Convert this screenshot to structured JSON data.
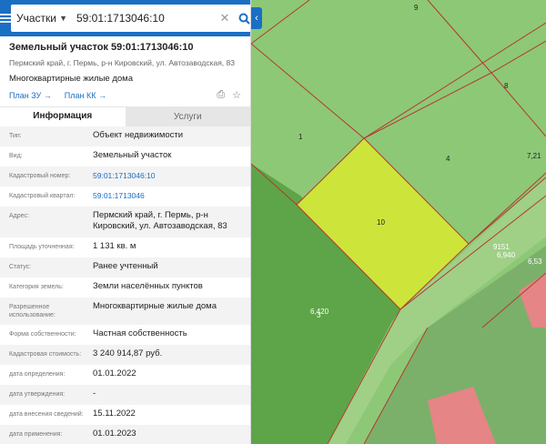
{
  "search": {
    "category": "Участки",
    "value": "59:01:1713046:10"
  },
  "parcel": {
    "title": "Земельный участок 59:01:1713046:10",
    "address_short": "Пермский край, г. Пермь, р-н Кировский, ул. Автозаводская, 83",
    "purpose": "Многоквартирные жилые дома",
    "link_plan_zu": "План ЗУ",
    "link_plan_kk": "План КК"
  },
  "tabs": {
    "info": "Информация",
    "services": "Услуги"
  },
  "rows": [
    {
      "key": "Тип:",
      "value": "Объект недвижимости"
    },
    {
      "key": "Вид:",
      "value": "Земельный участок"
    },
    {
      "key": "Кадастровый номер:",
      "value": "59:01:1713046:10"
    },
    {
      "key": "Кадастровый квартал:",
      "value": "59:01:1713046"
    },
    {
      "key": "Адрес:",
      "value": "Пермский край, г. Пермь, р-н Кировский, ул. Автозаводская, 83"
    },
    {
      "key": "Площадь уточненная:",
      "value": "1 131 кв. м"
    },
    {
      "key": "Статус:",
      "value": "Ранее учтенный"
    },
    {
      "key": "Категория земель:",
      "value": "Земли населённых пунктов"
    },
    {
      "key": "Разрешенное использование:",
      "value": "Многоквартирные жилые дома"
    },
    {
      "key": "Форма собственности:",
      "value": "Частная собственность"
    },
    {
      "key": "Кадастровая стоимость:",
      "value": "3 240 914,87 руб."
    },
    {
      "key": "дата определения:",
      "value": "01.01.2022"
    },
    {
      "key": "дата утверждения:",
      "value": "-"
    },
    {
      "key": "дата внесения сведений:",
      "value": "15.11.2022"
    },
    {
      "key": "дата применения:",
      "value": "01.01.2023"
    }
  ],
  "map_labels": {
    "l9": "9",
    "l8": "8",
    "l1": "1",
    "l4": "4",
    "l721": "7,21",
    "l10": "10",
    "l9151": "9151",
    "l6940": "6,940",
    "l653": "6,53",
    "l3": "3",
    "l6420": "6,420"
  },
  "colors": {
    "header": "#1a6fc4",
    "selected_parcel": "#cde53a",
    "parcel_fill": "#8dc877",
    "dark_parcel": "#5da548",
    "building": "#e58585",
    "border": "#b5392e"
  }
}
